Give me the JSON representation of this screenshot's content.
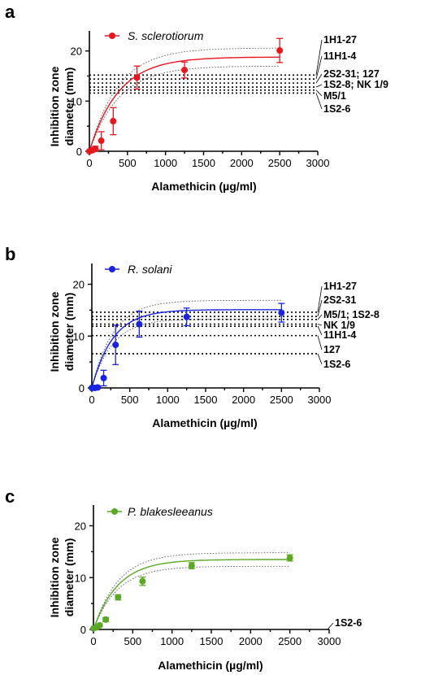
{
  "chart_data": [
    {
      "type": "scatter",
      "panel_label": "a",
      "legend": "S. sclerotiorum",
      "color": "#e8171f",
      "xlabel": "Alamethicin (µg/ml)",
      "ylabel_lines": [
        "Inhibition zone",
        "diameter (mm)"
      ],
      "xlim": [
        0,
        3000
      ],
      "ylim": [
        0,
        24
      ],
      "xticks": [
        0,
        500,
        1000,
        1500,
        2000,
        2500,
        3000
      ],
      "yticks": [
        0,
        10,
        20
      ],
      "points": [
        {
          "x": 0,
          "y": 0,
          "err": 0
        },
        {
          "x": 39,
          "y": 0.2,
          "err": 0.3
        },
        {
          "x": 78,
          "y": 0.5,
          "err": 0.5
        },
        {
          "x": 156,
          "y": 2.1,
          "err": 1.8
        },
        {
          "x": 313,
          "y": 6.0,
          "err": 2.7
        },
        {
          "x": 625,
          "y": 14.7,
          "err": 2.3
        },
        {
          "x": 1250,
          "y": 16.2,
          "err": 1.6
        },
        {
          "x": 2500,
          "y": 20.1,
          "err": 2.4
        }
      ],
      "fit": {
        "ymax": 18.8,
        "k": 0.0026,
        "band": 1.8
      },
      "references": [
        {
          "label": "1H1-27",
          "y": 15.2
        },
        {
          "label": "11H1-4",
          "y": 14.4
        },
        {
          "label": "2S2-31; 127",
          "y": 13.6
        },
        {
          "label": "1S2-8; NK 1/9",
          "y": 12.8
        },
        {
          "label": "M5/1",
          "y": 12.2
        },
        {
          "label": "1S2-6",
          "y": 11.6
        }
      ]
    },
    {
      "type": "scatter",
      "panel_label": "b",
      "legend": "R. solani",
      "color": "#1a24e0",
      "xlabel": "Alamethicin (µg/ml)",
      "ylabel_lines": [
        "Inhibition zone",
        "diameter (mm)"
      ],
      "xlim": [
        0,
        3000
      ],
      "ylim": [
        0,
        24
      ],
      "xticks": [
        0,
        500,
        1000,
        1500,
        2000,
        2500,
        3000
      ],
      "yticks": [
        0,
        10,
        20
      ],
      "points": [
        {
          "x": 0,
          "y": 0,
          "err": 0
        },
        {
          "x": 39,
          "y": 0,
          "err": 0
        },
        {
          "x": 78,
          "y": 0.1,
          "err": 0.2
        },
        {
          "x": 156,
          "y": 1.9,
          "err": 1.5
        },
        {
          "x": 313,
          "y": 8.3,
          "err": 3.8
        },
        {
          "x": 625,
          "y": 12.3,
          "err": 2.5
        },
        {
          "x": 1250,
          "y": 13.7,
          "err": 1.7
        },
        {
          "x": 2500,
          "y": 14.5,
          "err": 1.8
        }
      ],
      "fit": {
        "ymax": 15.1,
        "k": 0.0036,
        "band": 1.8
      },
      "references": [
        {
          "label": "1H1-27",
          "y": 14.6
        },
        {
          "label": "2S2-31",
          "y": 13.8
        },
        {
          "label": "M5/1; 1S2-8",
          "y": 13.2
        },
        {
          "label": "NK 1/9",
          "y": 12.3
        },
        {
          "label": "11H1-4",
          "y": 11.9
        },
        {
          "label": "127",
          "y": 10.1
        },
        {
          "label": "1S2-6",
          "y": 6.6
        }
      ]
    },
    {
      "type": "scatter",
      "panel_label": "c",
      "legend": "P. blakesleeanus",
      "color": "#5aa825",
      "xlabel": "Alamethicin (µg/ml)",
      "ylabel_lines": [
        "Inhibition zone",
        "diameter (mm)"
      ],
      "xlim": [
        0,
        3000
      ],
      "ylim": [
        0,
        24
      ],
      "xticks": [
        0,
        500,
        1000,
        1500,
        2000,
        2500,
        3000
      ],
      "yticks": [
        0,
        10,
        20
      ],
      "points": [
        {
          "x": 0,
          "y": 0.2,
          "err": 0
        },
        {
          "x": 39,
          "y": 0.4,
          "err": 0.2
        },
        {
          "x": 78,
          "y": 0.8,
          "err": 0.3
        },
        {
          "x": 156,
          "y": 1.9,
          "err": 0.4
        },
        {
          "x": 313,
          "y": 6.2,
          "err": 0.5
        },
        {
          "x": 625,
          "y": 9.3,
          "err": 0.8
        },
        {
          "x": 1250,
          "y": 12.3,
          "err": 0.6
        },
        {
          "x": 2500,
          "y": 13.8,
          "err": 0.6
        }
      ],
      "fit": {
        "ymax": 13.5,
        "k": 0.0032,
        "band": 1.3
      },
      "references": [
        {
          "label": "1S2-6",
          "y": 0
        }
      ]
    }
  ]
}
